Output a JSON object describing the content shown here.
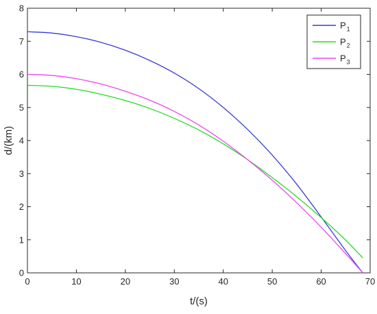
{
  "chart_data": {
    "type": "line",
    "title": "",
    "xlabel": "t/(s)",
    "ylabel": "d/(km)",
    "xlim": [
      0,
      70
    ],
    "ylim": [
      0,
      8
    ],
    "xticks": [
      0,
      10,
      20,
      30,
      40,
      50,
      60,
      70
    ],
    "yticks": [
      0,
      1,
      2,
      3,
      4,
      5,
      6,
      7,
      8
    ],
    "xtick_labels": [
      "0",
      "10",
      "20",
      "30",
      "40",
      "50",
      "60",
      "70"
    ],
    "ytick_labels": [
      "0",
      "1",
      "2",
      "3",
      "4",
      "5",
      "6",
      "7",
      "8"
    ],
    "grid": false,
    "legend_position": "top-right",
    "series": [
      {
        "name": "P",
        "subscript": "1",
        "color": "#3a3ad6",
        "x": [
          0,
          5,
          10,
          15,
          20,
          25,
          30,
          35,
          40,
          45,
          50,
          55,
          60,
          65,
          68.5
        ],
        "y": [
          7.29,
          7.25,
          7.14,
          6.97,
          6.73,
          6.42,
          6.04,
          5.57,
          5.0,
          4.33,
          3.56,
          2.68,
          1.69,
          0.67,
          0.0
        ]
      },
      {
        "name": "P",
        "subscript": "2",
        "color": "#22dd22",
        "x": [
          0,
          5,
          10,
          15,
          20,
          25,
          30,
          35,
          40,
          45,
          50,
          55,
          60,
          65,
          68.5
        ],
        "y": [
          5.67,
          5.64,
          5.55,
          5.4,
          5.21,
          4.97,
          4.67,
          4.32,
          3.9,
          3.42,
          2.88,
          2.3,
          1.67,
          0.99,
          0.45
        ]
      },
      {
        "name": "P",
        "subscript": "3",
        "color": "#ee44ee",
        "x": [
          0,
          5,
          10,
          15,
          20,
          25,
          30,
          35,
          40,
          45,
          50,
          55,
          60,
          65,
          68.5
        ],
        "y": [
          6.0,
          5.97,
          5.87,
          5.71,
          5.49,
          5.22,
          4.88,
          4.47,
          3.98,
          3.42,
          2.8,
          2.12,
          1.38,
          0.58,
          0.0
        ]
      }
    ]
  }
}
